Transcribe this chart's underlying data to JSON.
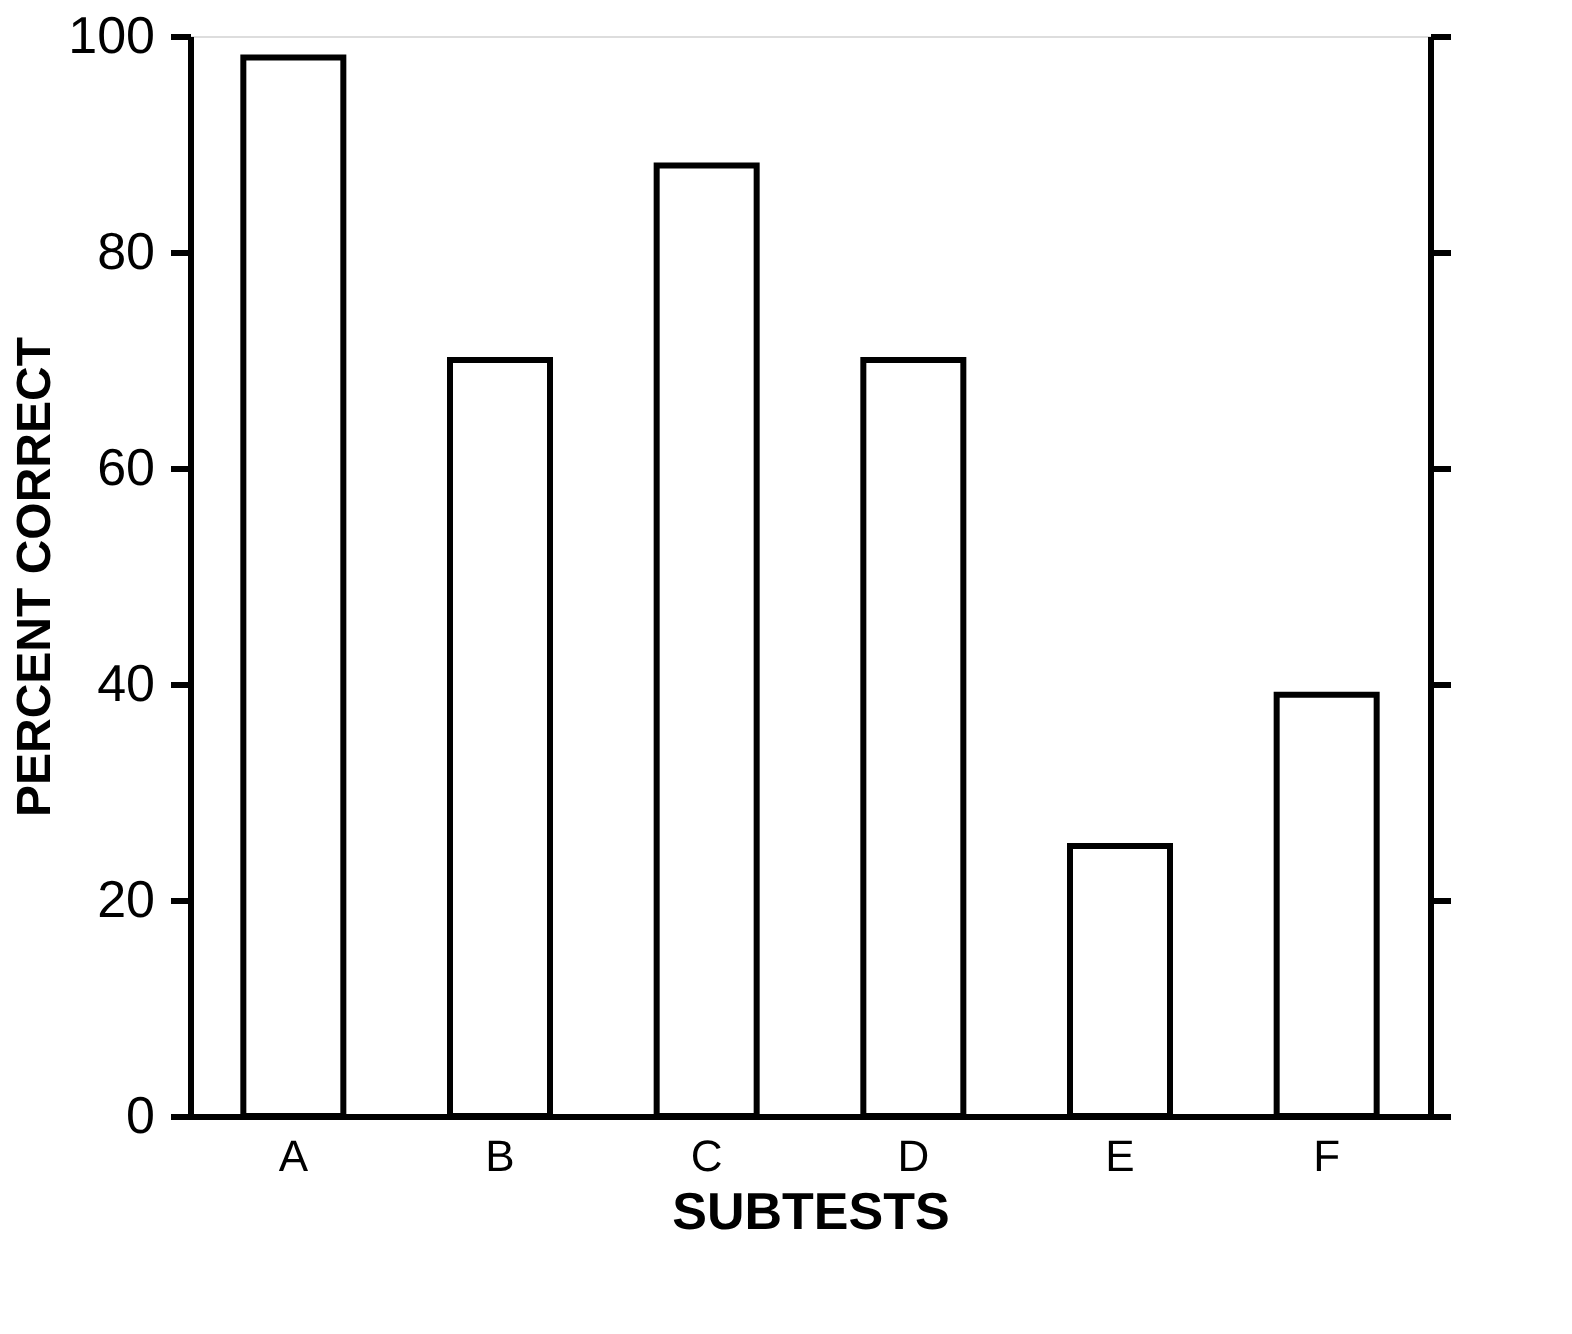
{
  "chart_data": {
    "type": "bar",
    "xlabel": "SUBTESTS",
    "ylabel": "PERCENT CORRECT",
    "categories": [
      "A",
      "B",
      "C",
      "D",
      "E",
      "F"
    ],
    "values": [
      98,
      70,
      88,
      70,
      25,
      39
    ],
    "color": "#ffffff",
    "ylim": [
      0,
      100
    ],
    "yticks": [
      0,
      20,
      40,
      60,
      80,
      100
    ],
    "grid": false
  }
}
